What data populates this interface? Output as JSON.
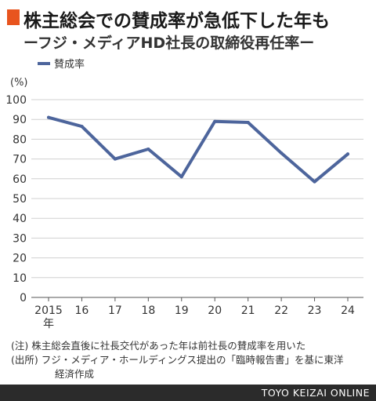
{
  "header": {
    "title": "株主総会での賛成率が急低下した年も",
    "subtitle": "ーフジ・メディアHD社長の取締役再任率ー"
  },
  "chart_data": {
    "type": "line",
    "categories": [
      "2015\n年",
      "16",
      "17",
      "18",
      "19",
      "20",
      "21",
      "22",
      "23",
      "24"
    ],
    "series": [
      {
        "name": "賛成率",
        "values": [
          91,
          86.5,
          70,
          75,
          61,
          89,
          88.5,
          73,
          58.5,
          72.5
        ],
        "color": "#4d659c"
      }
    ],
    "unit": "(%)",
    "ylim": [
      0,
      100
    ],
    "yticks": [
      0,
      10,
      20,
      30,
      40,
      50,
      60,
      70,
      80,
      90,
      100
    ],
    "grid": true,
    "legend": "top-left"
  },
  "notes": {
    "note1": "(注)  株主総会直後に社長交代があった年は前社長の賛成率を用いた",
    "note2": "(出所)  フジ・メディア・ホールディングス提出の「臨時報告書」を基に東洋",
    "note3": "経済作成"
  },
  "footer": {
    "credit": "TOYO KEIZAI ONLINE"
  }
}
